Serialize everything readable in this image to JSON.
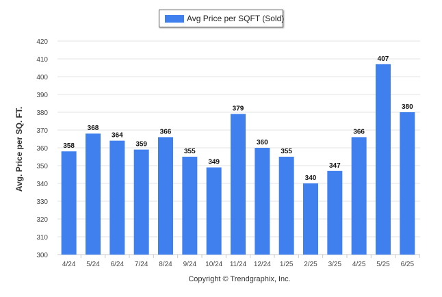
{
  "chart_data": {
    "type": "bar",
    "categories": [
      "4/24",
      "5/24",
      "6/24",
      "7/24",
      "8/24",
      "9/24",
      "10/24",
      "11/24",
      "12/24",
      "1/25",
      "2/25",
      "3/25",
      "4/25",
      "5/25",
      "6/25"
    ],
    "series": [
      {
        "name": "Avg Price per SQFT (Sold)",
        "values": [
          358,
          368,
          364,
          359,
          366,
          355,
          349,
          379,
          360,
          355,
          340,
          347,
          366,
          407,
          380
        ]
      }
    ],
    "ylabel": "Avg. Price per SQ. FT.",
    "xlabel": "",
    "ylim": [
      300,
      420
    ],
    "yticks": [
      300,
      310,
      320,
      330,
      340,
      350,
      360,
      370,
      380,
      390,
      400,
      410,
      420
    ],
    "grid": true,
    "legend_position": "top-center",
    "bar_color": "#4080ee",
    "data_labels": true
  },
  "footer": {
    "copyright": "Copyright © Trendgraphix, Inc."
  }
}
